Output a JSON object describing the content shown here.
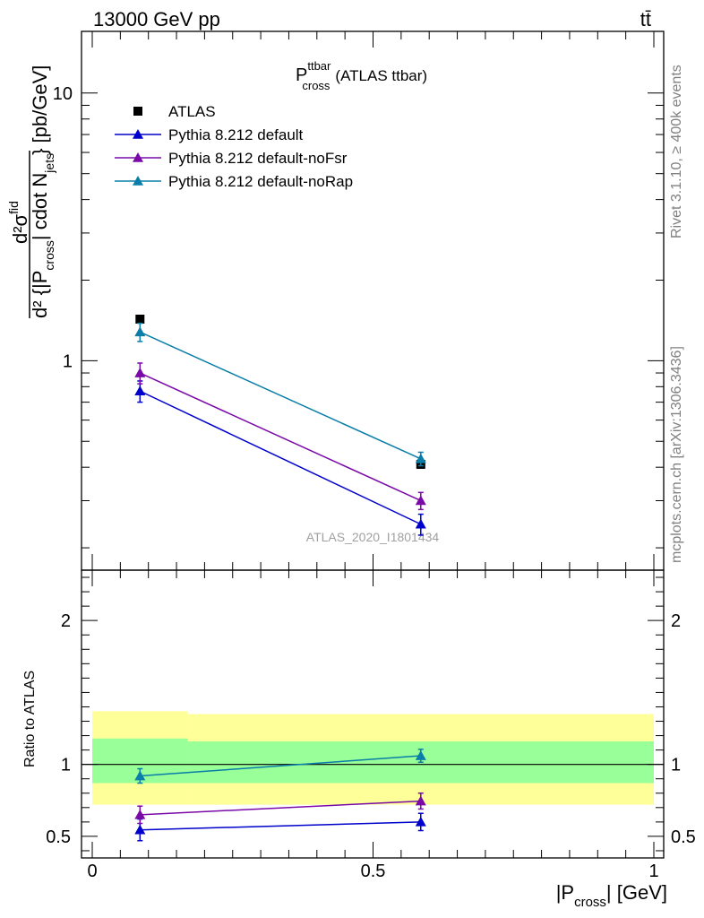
{
  "header": {
    "left": "13000 GeV pp",
    "right": "tt̄",
    "title_main": "P",
    "title_sup": "ttbar",
    "title_sub": "cross",
    "title_suffix": "(ATLAS ttbar)"
  },
  "side_labels": {
    "rivet": "Rivet 3.1.10, ≥ 400k events",
    "mcplots": "mcplots.cern.ch [arXiv:1306.3436]"
  },
  "watermark": "ATLAS_2020_I1801434",
  "axis_labels": {
    "ylabel_num": "d²σ",
    "ylabel_num_sup": "fid",
    "ylabel_den": "d² {|P",
    "ylabel_den_sub": "cross",
    "ylabel_den_mid": "| cdot N",
    "ylabel_den_sub2": "jets",
    "ylabel_den_end": "} [pb/GeV]",
    "xlabel_main": "|P",
    "xlabel_sub": "cross",
    "xlabel_end": "| [GeV]",
    "ratio_ylabel": "Ratio to ATLAS"
  },
  "colors": {
    "ATLAS": "#000000",
    "default": "#0000cc",
    "noFsr": "#7a0aa8",
    "noRap": "#0a7ea8",
    "band_inner": "#99ff99",
    "band_outer": "#ffff99"
  },
  "chart_data": [
    {
      "type": "scatter",
      "panel": "main",
      "yscale": "log",
      "xlim": [
        0,
        1
      ],
      "ylim": [
        0.165,
        17
      ],
      "y_tick_labels": [
        "1",
        "10"
      ],
      "x_bins": [
        [
          0,
          0.17
        ],
        [
          0.17,
          1.0
        ]
      ],
      "x": [
        0.085,
        0.585
      ],
      "legend": [
        "ATLAS",
        "Pythia 8.212 default",
        "Pythia 8.212 default-noFsr",
        "Pythia 8.212 default-noRap"
      ],
      "legend_position": "top-left",
      "series": [
        {
          "name": "ATLAS",
          "key": "ATLAS",
          "marker": "square",
          "values": [
            1.43,
            0.41
          ],
          "err": [
            0.0,
            0.0
          ]
        },
        {
          "name": "Pythia 8.212 default",
          "key": "default",
          "marker": "triangle",
          "values": [
            0.77,
            0.245
          ],
          "err": [
            0.07,
            0.022
          ]
        },
        {
          "name": "Pythia 8.212 default-noFsr",
          "key": "noFsr",
          "marker": "triangle",
          "values": [
            0.9,
            0.3
          ],
          "err": [
            0.08,
            0.022
          ]
        },
        {
          "name": "Pythia 8.212 default-noRap",
          "key": "noRap",
          "marker": "triangle",
          "values": [
            1.28,
            0.43
          ],
          "err": [
            0.1,
            0.025
          ]
        }
      ]
    },
    {
      "type": "scatter",
      "panel": "ratio",
      "ylim": [
        0.35,
        2.35
      ],
      "y_ticks": [
        0.5,
        1,
        2
      ],
      "y_tick_labels": [
        "0.5",
        "1",
        "2"
      ],
      "x_ticks": [
        0,
        0.5,
        1
      ],
      "x_tick_labels": [
        "0",
        "0.5",
        "1"
      ],
      "x": [
        0.085,
        0.585
      ],
      "reference": 1.0,
      "band_inner": [
        [
          0.87,
          1.18
        ],
        [
          0.87,
          1.16
        ]
      ],
      "band_outer": [
        [
          0.72,
          1.37
        ],
        [
          0.72,
          1.35
        ]
      ],
      "series": [
        {
          "name": "Pythia 8.212 default",
          "key": "default",
          "values": [
            0.545,
            0.6
          ],
          "err": [
            0.075,
            0.06
          ]
        },
        {
          "name": "Pythia 8.212 default-noFsr",
          "key": "noFsr",
          "values": [
            0.65,
            0.745
          ],
          "err": [
            0.06,
            0.055
          ]
        },
        {
          "name": "Pythia 8.212 default-noRap",
          "key": "noRap",
          "values": [
            0.92,
            1.06
          ],
          "err": [
            0.05,
            0.045
          ]
        }
      ]
    }
  ]
}
